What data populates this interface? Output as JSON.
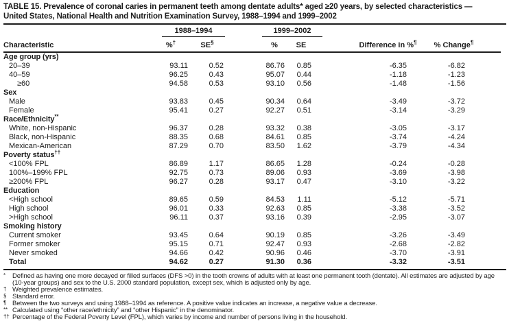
{
  "title": {
    "line1": "TABLE 15. Prevalence of coronal caries in permanent teeth among dentate adults* aged ≥20 years, by selected characteristics —",
    "line2": "United States, National Health and Nutrition Examination Survey, 1988–1994 and 1999–2002"
  },
  "header": {
    "characteristic": "Characteristic",
    "group1": "1988–1994",
    "group2": "1999–2002",
    "col_pct1": "%",
    "col_pct1_sup": "†",
    "col_se1": "SE",
    "col_se1_sup": "§",
    "col_pct2": "%",
    "col_se2": "SE",
    "col_diff": "Difference in %",
    "col_diff_sup": "¶",
    "col_change": "% Change",
    "col_change_sup": "¶"
  },
  "rows": [
    {
      "type": "section",
      "label": "Age group (yrs)",
      "sup": ""
    },
    {
      "type": "data",
      "indent": 1,
      "label": "20–39",
      "values": [
        "93.11",
        "0.52",
        "86.76",
        "0.85",
        "-6.35",
        "-6.82"
      ]
    },
    {
      "type": "data",
      "indent": 1,
      "label": "40–59",
      "values": [
        "96.25",
        "0.43",
        "95.07",
        "0.44",
        "-1.18",
        "-1.23"
      ]
    },
    {
      "type": "data",
      "indent": 2,
      "label": "≥60",
      "values": [
        "94.58",
        "0.53",
        "93.10",
        "0.56",
        "-1.48",
        "-1.56"
      ]
    },
    {
      "type": "section",
      "label": "Sex",
      "sup": ""
    },
    {
      "type": "data",
      "indent": 1,
      "label": "Male",
      "values": [
        "93.83",
        "0.45",
        "90.34",
        "0.64",
        "-3.49",
        "-3.72"
      ]
    },
    {
      "type": "data",
      "indent": 1,
      "label": "Female",
      "values": [
        "95.41",
        "0.27",
        "92.27",
        "0.51",
        "-3.14",
        "-3.29"
      ]
    },
    {
      "type": "section",
      "label": "Race/Ethnicity",
      "sup": "**"
    },
    {
      "type": "data",
      "indent": 1,
      "label": "White, non-Hispanic",
      "values": [
        "96.37",
        "0.28",
        "93.32",
        "0.38",
        "-3.05",
        "-3.17"
      ]
    },
    {
      "type": "data",
      "indent": 1,
      "label": "Black, non-Hispanic",
      "values": [
        "88.35",
        "0.68",
        "84.61",
        "0.85",
        "-3.74",
        "-4.24"
      ]
    },
    {
      "type": "data",
      "indent": 1,
      "label": "Mexican-American",
      "values": [
        "87.29",
        "0.70",
        "83.50",
        "1.62",
        "-3.79",
        "-4.34"
      ]
    },
    {
      "type": "section",
      "label": "Poverty status",
      "sup": "††"
    },
    {
      "type": "data",
      "indent": 1,
      "label": "<100% FPL",
      "values": [
        "86.89",
        "1.17",
        "86.65",
        "1.28",
        "-0.24",
        "-0.28"
      ]
    },
    {
      "type": "data",
      "indent": 1,
      "label": "100%–199% FPL",
      "values": [
        "92.75",
        "0.73",
        "89.06",
        "0.93",
        "-3.69",
        "-3.98"
      ]
    },
    {
      "type": "data",
      "indent": 1,
      "label": "≥200% FPL",
      "values": [
        "96.27",
        "0.28",
        "93.17",
        "0.47",
        "-3.10",
        "-3.22"
      ]
    },
    {
      "type": "section",
      "label": "Education",
      "sup": ""
    },
    {
      "type": "data",
      "indent": 1,
      "label": "<High school",
      "values": [
        "89.65",
        "0.59",
        "84.53",
        "1.11",
        "-5.12",
        "-5.71"
      ]
    },
    {
      "type": "data",
      "indent": 1,
      "label": "High school",
      "values": [
        "96.01",
        "0.33",
        "92.63",
        "0.85",
        "-3.38",
        "-3.52"
      ]
    },
    {
      "type": "data",
      "indent": 1,
      "label": ">High school",
      "values": [
        "96.11",
        "0.37",
        "93.16",
        "0.39",
        "-2.95",
        "-3.07"
      ]
    },
    {
      "type": "section",
      "label": "Smoking history",
      "sup": ""
    },
    {
      "type": "data",
      "indent": 1,
      "label": "Current smoker",
      "values": [
        "93.45",
        "0.64",
        "90.19",
        "0.85",
        "-3.26",
        "-3.49"
      ]
    },
    {
      "type": "data",
      "indent": 1,
      "label": "Former smoker",
      "values": [
        "95.15",
        "0.71",
        "92.47",
        "0.93",
        "-2.68",
        "-2.82"
      ]
    },
    {
      "type": "data",
      "indent": 1,
      "label": "Never smoked",
      "values": [
        "94.66",
        "0.42",
        "90.96",
        "0.46",
        "-3.70",
        "-3.91"
      ]
    },
    {
      "type": "total",
      "label": "Total",
      "values": [
        "94.62",
        "0.27",
        "91.30",
        "0.36",
        "-3.32",
        "-3.51"
      ]
    }
  ],
  "footnotes": [
    {
      "marker": "*",
      "text": "Defined as having one more decayed or filled surfaces (DFS >0) in the tooth crowns of adults with at least one permanent tooth (dentate). All estimates are adjusted by age (10-year groups) and sex to the U.S. 2000 standard population, except sex, which is adjusted only by age."
    },
    {
      "marker": "†",
      "text": "Weighted prevalence estimates."
    },
    {
      "marker": "§",
      "text": "Standard error."
    },
    {
      "marker": "¶",
      "text": "Between the two surveys and using 1988–1994 as reference. A positive value indicates an increase, a negative value a decrease."
    },
    {
      "marker": "**",
      "text": "Calculated using “other race/ethnicity” and “other Hispanic” in the denominator."
    },
    {
      "marker": "††",
      "text": "Percentage of the Federal Poverty Level (FPL), which varies by income and number of persons living in the household."
    }
  ],
  "colors": {
    "text": "#1c1c1c",
    "rule": "#1c1c1c",
    "background": "#ffffff"
  }
}
